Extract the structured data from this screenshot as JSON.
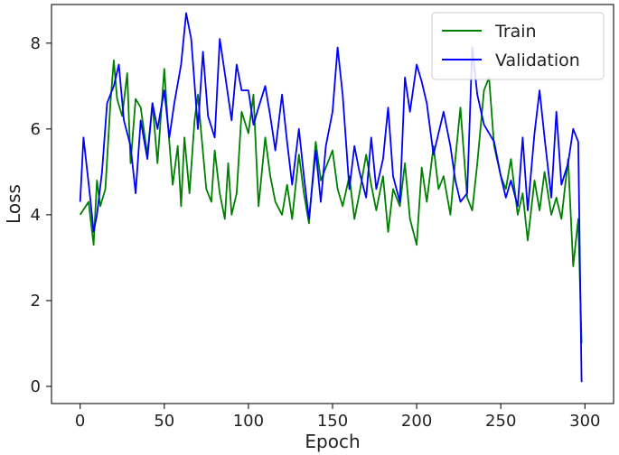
{
  "chart_data": {
    "type": "line",
    "title": "",
    "xlabel": "Epoch",
    "ylabel": "Loss",
    "xlim": [
      -17,
      317
    ],
    "ylim": [
      -0.4,
      8.9
    ],
    "xticks": [
      0,
      50,
      100,
      150,
      200,
      250,
      300
    ],
    "yticks": [
      0,
      2,
      4,
      6,
      8
    ],
    "grid": false,
    "legend": "top-right",
    "series": [
      {
        "name": "Train",
        "color": "#008000",
        "x": [
          0,
          5,
          8,
          10,
          12,
          15,
          18,
          20,
          22,
          25,
          28,
          30,
          33,
          36,
          40,
          43,
          46,
          50,
          52,
          55,
          58,
          60,
          62,
          65,
          68,
          70,
          72,
          75,
          78,
          80,
          83,
          86,
          88,
          90,
          93,
          96,
          100,
          103,
          106,
          110,
          113,
          116,
          120,
          123,
          126,
          130,
          133,
          136,
          140,
          143,
          146,
          150,
          153,
          156,
          160,
          163,
          166,
          170,
          173,
          176,
          180,
          183,
          186,
          190,
          193,
          196,
          200,
          203,
          206,
          210,
          213,
          216,
          220,
          223,
          226,
          230,
          233,
          236,
          240,
          243,
          246,
          250,
          253,
          256,
          260,
          263,
          266,
          270,
          273,
          276,
          280,
          283,
          286,
          290,
          293,
          296,
          298
        ],
        "values": [
          4.0,
          4.3,
          3.3,
          4.8,
          4.2,
          4.6,
          6.6,
          7.6,
          6.7,
          6.3,
          7.3,
          5.2,
          6.7,
          6.5,
          5.4,
          6.6,
          5.2,
          7.4,
          6.2,
          4.7,
          5.6,
          4.2,
          5.8,
          4.5,
          6.2,
          6.8,
          5.9,
          4.6,
          4.3,
          5.5,
          4.5,
          3.9,
          5.2,
          4.0,
          4.5,
          6.4,
          5.9,
          6.8,
          4.2,
          5.8,
          4.9,
          4.3,
          4.0,
          4.7,
          3.9,
          5.4,
          4.5,
          3.8,
          5.7,
          4.8,
          5.1,
          5.5,
          4.6,
          4.2,
          4.9,
          3.9,
          4.5,
          5.4,
          4.7,
          4.1,
          4.9,
          3.6,
          4.6,
          4.2,
          5.2,
          3.9,
          3.3,
          5.1,
          4.3,
          5.6,
          4.6,
          4.9,
          4.0,
          5.3,
          6.5,
          4.4,
          4.1,
          5.2,
          6.9,
          7.2,
          5.6,
          4.9,
          4.6,
          5.3,
          4.0,
          4.5,
          3.4,
          4.8,
          4.1,
          5.0,
          4.0,
          4.4,
          3.9,
          5.3,
          2.8,
          3.9,
          1.0
        ]
      },
      {
        "name": "Validation",
        "color": "#0000ff",
        "x": [
          0,
          2,
          4,
          6,
          8,
          10,
          13,
          16,
          20,
          23,
          26,
          30,
          33,
          36,
          40,
          43,
          46,
          50,
          53,
          56,
          60,
          63,
          66,
          70,
          73,
          76,
          80,
          83,
          86,
          90,
          93,
          96,
          100,
          103,
          106,
          110,
          113,
          116,
          120,
          123,
          126,
          130,
          133,
          136,
          140,
          143,
          146,
          150,
          153,
          156,
          160,
          163,
          166,
          170,
          173,
          176,
          180,
          183,
          186,
          190,
          193,
          196,
          200,
          203,
          206,
          210,
          213,
          216,
          220,
          223,
          226,
          230,
          233,
          236,
          240,
          243,
          246,
          250,
          253,
          256,
          260,
          263,
          266,
          270,
          273,
          276,
          280,
          283,
          286,
          290,
          293,
          296,
          298
        ],
        "values": [
          4.3,
          5.8,
          5.1,
          4.4,
          3.6,
          4.0,
          5.0,
          6.6,
          7.0,
          7.5,
          6.2,
          5.6,
          4.5,
          6.2,
          5.3,
          6.6,
          6.0,
          6.9,
          5.8,
          6.6,
          7.5,
          8.7,
          8.1,
          6.0,
          7.8,
          6.3,
          5.8,
          8.1,
          7.3,
          6.2,
          7.5,
          6.9,
          6.9,
          6.1,
          6.5,
          7.0,
          6.3,
          5.5,
          6.8,
          5.7,
          4.7,
          6.0,
          4.9,
          3.9,
          5.5,
          4.3,
          5.6,
          6.4,
          7.9,
          6.8,
          4.6,
          5.6,
          5.0,
          4.4,
          5.8,
          4.6,
          5.3,
          6.5,
          4.9,
          4.3,
          7.2,
          6.4,
          7.5,
          7.1,
          6.6,
          5.4,
          5.9,
          6.4,
          5.6,
          4.8,
          4.3,
          4.5,
          7.9,
          6.8,
          6.1,
          5.9,
          5.7,
          4.9,
          4.4,
          4.8,
          4.2,
          5.8,
          4.1,
          5.9,
          6.9,
          5.8,
          4.4,
          6.4,
          4.7,
          5.2,
          6.0,
          5.7,
          0.1
        ]
      }
    ]
  }
}
